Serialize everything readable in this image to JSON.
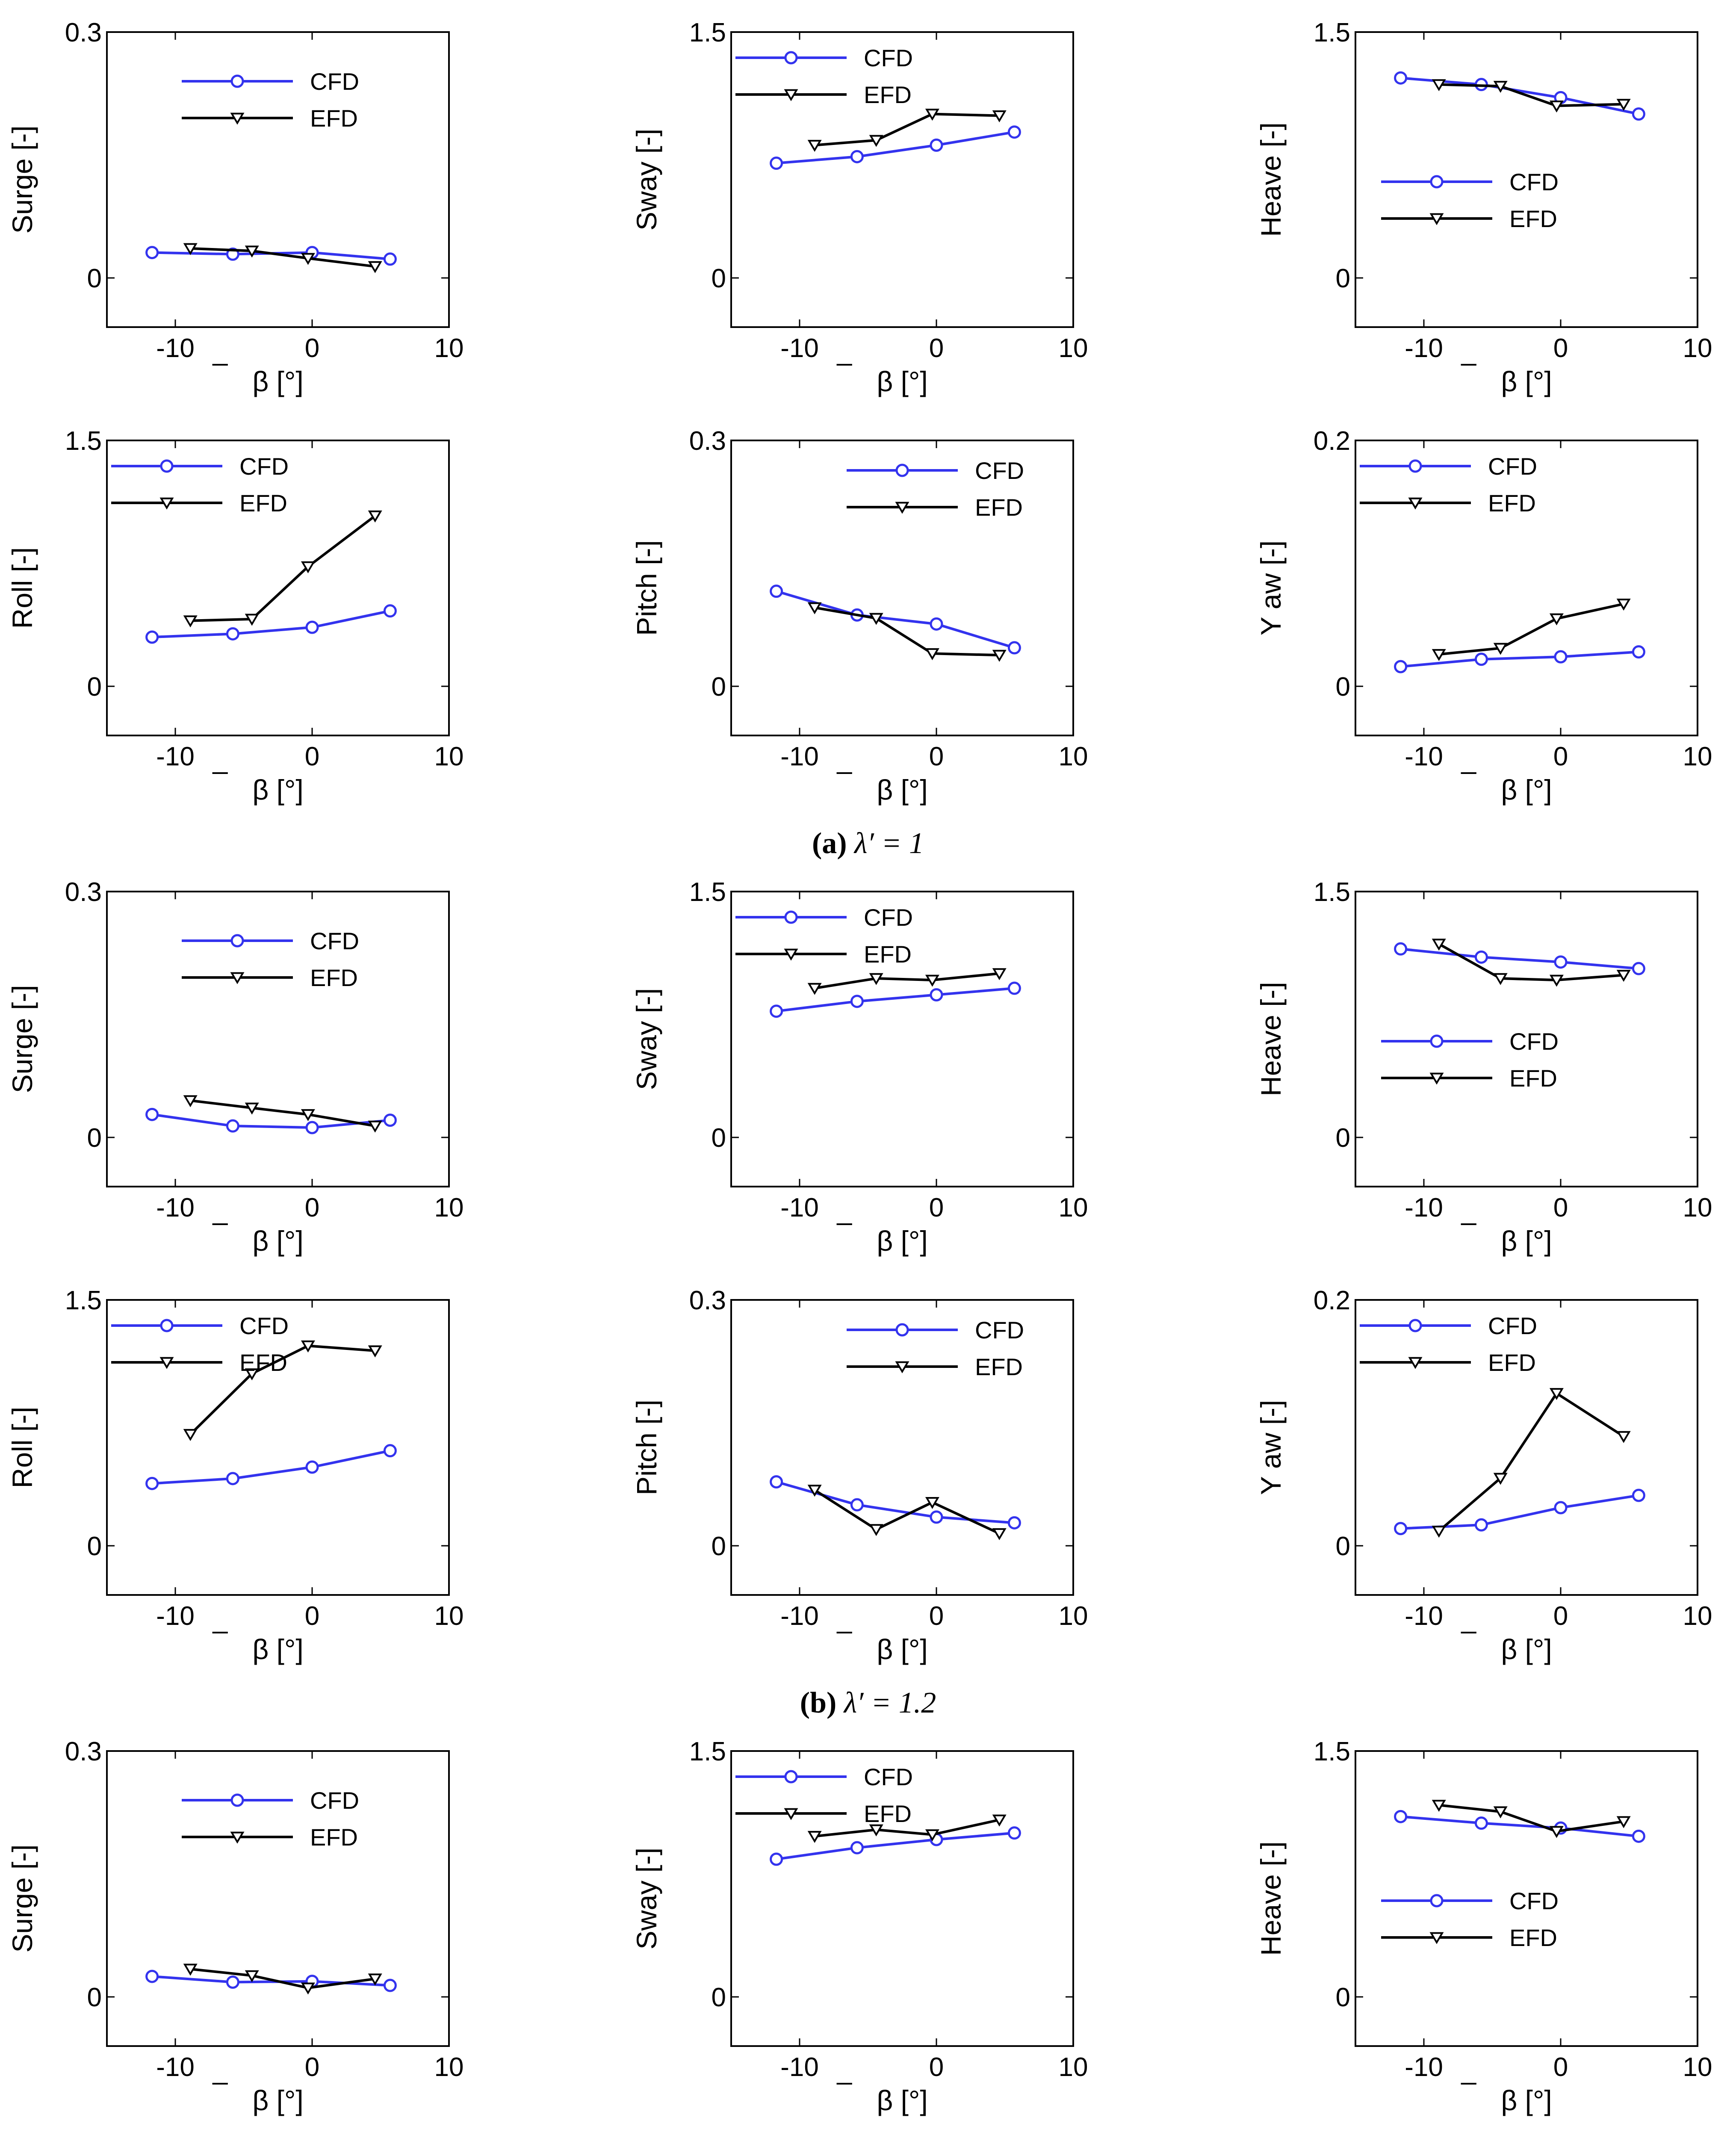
{
  "figure": {
    "captions": [
      {
        "label": "(a)",
        "text": "λ′ = 1"
      },
      {
        "label": "(b)",
        "text": "λ′ = 1.2"
      }
    ],
    "x_axis_label": "β [°]",
    "colors": {
      "cfd": "#3333ee",
      "efd": "#000000"
    }
  },
  "chart_data": [
    {
      "type": "line",
      "group": "a",
      "title": "",
      "ylabel": "Surge [-]",
      "xlabel": "β [°]",
      "xlim": [
        -15,
        10
      ],
      "ylim": [
        -0.06,
        0.3
      ],
      "xticks": [
        -10,
        0,
        10
      ],
      "yticks": [
        0,
        0.3
      ],
      "ytick_labels": [
        "0",
        "0.3"
      ],
      "legend_position": "top-center",
      "series": [
        {
          "name": "CFD",
          "marker": "circle",
          "x": [
            -11.7,
            -5.8,
            0,
            5.7
          ],
          "y": [
            0.031,
            0.029,
            0.031,
            0.023
          ]
        },
        {
          "name": "EFD",
          "marker": "triangle-down",
          "x": [
            -8.9,
            -4.4,
            -0.3,
            4.6
          ],
          "y": [
            0.036,
            0.033,
            0.024,
            0.014
          ]
        }
      ]
    },
    {
      "type": "line",
      "group": "a",
      "title": "",
      "ylabel": "Sway [-]",
      "xlabel": "β [°]",
      "xlim": [
        -15,
        10
      ],
      "ylim": [
        -0.3,
        1.5
      ],
      "xticks": [
        -10,
        0,
        10
      ],
      "yticks": [
        0,
        1.5
      ],
      "ytick_labels": [
        "0",
        "1.5"
      ],
      "legend_position": "top-left",
      "series": [
        {
          "name": "CFD",
          "marker": "circle",
          "x": [
            -11.7,
            -5.8,
            0,
            5.7
          ],
          "y": [
            0.7,
            0.74,
            0.81,
            0.89
          ]
        },
        {
          "name": "EFD",
          "marker": "triangle-down",
          "x": [
            -8.9,
            -4.4,
            -0.3,
            4.6
          ],
          "y": [
            0.81,
            0.84,
            1.0,
            0.99
          ]
        }
      ]
    },
    {
      "type": "line",
      "group": "a",
      "title": "",
      "ylabel": "Heave [-]",
      "xlabel": "β [°]",
      "xlim": [
        -15,
        10
      ],
      "ylim": [
        -0.3,
        1.5
      ],
      "xticks": [
        -10,
        0,
        10
      ],
      "yticks": [
        0,
        1.5
      ],
      "ytick_labels": [
        "0",
        "1.5"
      ],
      "legend_position": "center-left",
      "series": [
        {
          "name": "CFD",
          "marker": "circle",
          "x": [
            -11.7,
            -5.8,
            0,
            5.7
          ],
          "y": [
            1.22,
            1.18,
            1.1,
            1.0
          ]
        },
        {
          "name": "EFD",
          "marker": "triangle-down",
          "x": [
            -8.9,
            -4.4,
            -0.3,
            4.6
          ],
          "y": [
            1.18,
            1.17,
            1.05,
            1.06
          ]
        }
      ]
    },
    {
      "type": "line",
      "group": "a",
      "title": "",
      "ylabel": "Roll [-]",
      "xlabel": "β [°]",
      "xlim": [
        -15,
        10
      ],
      "ylim": [
        -0.3,
        1.5
      ],
      "xticks": [
        -10,
        0,
        10
      ],
      "yticks": [
        0,
        1.5
      ],
      "ytick_labels": [
        "0",
        "1.5"
      ],
      "legend_position": "top-left",
      "series": [
        {
          "name": "CFD",
          "marker": "circle",
          "x": [
            -11.7,
            -5.8,
            0,
            5.7
          ],
          "y": [
            0.3,
            0.32,
            0.36,
            0.46
          ]
        },
        {
          "name": "EFD",
          "marker": "triangle-down",
          "x": [
            -8.9,
            -4.4,
            -0.3,
            4.6
          ],
          "y": [
            0.4,
            0.41,
            0.73,
            1.04
          ]
        }
      ]
    },
    {
      "type": "line",
      "group": "a",
      "title": "",
      "ylabel": "Pitch [-]",
      "xlabel": "β [°]",
      "xlim": [
        -15,
        10
      ],
      "ylim": [
        -0.06,
        0.3
      ],
      "xticks": [
        -10,
        0,
        10
      ],
      "yticks": [
        0,
        0.3
      ],
      "ytick_labels": [
        "0",
        "0.3"
      ],
      "legend_position": "top-right",
      "series": [
        {
          "name": "CFD",
          "marker": "circle",
          "x": [
            -11.7,
            -5.8,
            0,
            5.7
          ],
          "y": [
            0.116,
            0.087,
            0.076,
            0.047
          ]
        },
        {
          "name": "EFD",
          "marker": "triangle-down",
          "x": [
            -8.9,
            -4.4,
            -0.3,
            4.6
          ],
          "y": [
            0.096,
            0.083,
            0.04,
            0.038
          ]
        }
      ]
    },
    {
      "type": "line",
      "group": "a",
      "title": "",
      "ylabel": "Y aw [-]",
      "xlabel": "β [°]",
      "xlim": [
        -15,
        10
      ],
      "ylim": [
        -0.04,
        0.2
      ],
      "xticks": [
        -10,
        0,
        10
      ],
      "yticks": [
        0,
        0.2
      ],
      "ytick_labels": [
        "0",
        "0.2"
      ],
      "legend_position": "top-left",
      "series": [
        {
          "name": "CFD",
          "marker": "circle",
          "x": [
            -11.7,
            -5.8,
            0,
            5.7
          ],
          "y": [
            0.016,
            0.022,
            0.024,
            0.028
          ]
        },
        {
          "name": "EFD",
          "marker": "triangle-down",
          "x": [
            -8.9,
            -4.4,
            -0.3,
            4.6
          ],
          "y": [
            0.026,
            0.031,
            0.055,
            0.067
          ]
        }
      ]
    },
    {
      "type": "line",
      "group": "b",
      "title": "",
      "ylabel": "Surge [-]",
      "xlabel": "β [°]",
      "xlim": [
        -15,
        10
      ],
      "ylim": [
        -0.06,
        0.3
      ],
      "xticks": [
        -10,
        0,
        10
      ],
      "yticks": [
        0,
        0.3
      ],
      "ytick_labels": [
        "0",
        "0.3"
      ],
      "legend_position": "top-center",
      "series": [
        {
          "name": "CFD",
          "marker": "circle",
          "x": [
            -11.7,
            -5.8,
            0,
            5.7
          ],
          "y": [
            0.028,
            0.014,
            0.012,
            0.021
          ]
        },
        {
          "name": "EFD",
          "marker": "triangle-down",
          "x": [
            -8.9,
            -4.4,
            -0.3,
            4.6
          ],
          "y": [
            0.045,
            0.036,
            0.028,
            0.014
          ]
        }
      ]
    },
    {
      "type": "line",
      "group": "b",
      "title": "",
      "ylabel": "Sway [-]",
      "xlabel": "β [°]",
      "xlim": [
        -15,
        10
      ],
      "ylim": [
        -0.3,
        1.5
      ],
      "xticks": [
        -10,
        0,
        10
      ],
      "yticks": [
        0,
        1.5
      ],
      "ytick_labels": [
        "0",
        "1.5"
      ],
      "legend_position": "top-left",
      "series": [
        {
          "name": "CFD",
          "marker": "circle",
          "x": [
            -11.7,
            -5.8,
            0,
            5.7
          ],
          "y": [
            0.77,
            0.83,
            0.87,
            0.91
          ]
        },
        {
          "name": "EFD",
          "marker": "triangle-down",
          "x": [
            -8.9,
            -4.4,
            -0.3,
            4.6
          ],
          "y": [
            0.91,
            0.97,
            0.96,
            1.0
          ]
        }
      ]
    },
    {
      "type": "line",
      "group": "b",
      "title": "",
      "ylabel": "Heave [-]",
      "xlabel": "β [°]",
      "xlim": [
        -15,
        10
      ],
      "ylim": [
        -0.3,
        1.5
      ],
      "xticks": [
        -10,
        0,
        10
      ],
      "yticks": [
        0,
        1.5
      ],
      "ytick_labels": [
        "0",
        "1.5"
      ],
      "legend_position": "center-left",
      "series": [
        {
          "name": "CFD",
          "marker": "circle",
          "x": [
            -11.7,
            -5.8,
            0,
            5.7
          ],
          "y": [
            1.15,
            1.1,
            1.07,
            1.03
          ]
        },
        {
          "name": "EFD",
          "marker": "triangle-down",
          "x": [
            -8.9,
            -4.4,
            -0.3,
            4.6
          ],
          "y": [
            1.18,
            0.97,
            0.96,
            0.99
          ]
        }
      ]
    },
    {
      "type": "line",
      "group": "b",
      "title": "",
      "ylabel": "Roll [-]",
      "xlabel": "β [°]",
      "xlim": [
        -15,
        10
      ],
      "ylim": [
        -0.3,
        1.5
      ],
      "xticks": [
        -10,
        0,
        10
      ],
      "yticks": [
        0,
        1.5
      ],
      "ytick_labels": [
        "0",
        "1.5"
      ],
      "legend_position": "top-left",
      "series": [
        {
          "name": "CFD",
          "marker": "circle",
          "x": [
            -11.7,
            -5.8,
            0,
            5.7
          ],
          "y": [
            0.38,
            0.41,
            0.48,
            0.58
          ]
        },
        {
          "name": "EFD",
          "marker": "triangle-down",
          "x": [
            -8.9,
            -4.4,
            -0.3,
            4.6
          ],
          "y": [
            0.68,
            1.05,
            1.22,
            1.19
          ]
        }
      ]
    },
    {
      "type": "line",
      "group": "b",
      "title": "",
      "ylabel": "Pitch [-]",
      "xlabel": "β [°]",
      "xlim": [
        -15,
        10
      ],
      "ylim": [
        -0.06,
        0.3
      ],
      "xticks": [
        -10,
        0,
        10
      ],
      "yticks": [
        0,
        0.3
      ],
      "ytick_labels": [
        "0",
        "0.3"
      ],
      "legend_position": "top-right",
      "series": [
        {
          "name": "CFD",
          "marker": "circle",
          "x": [
            -11.7,
            -5.8,
            0,
            5.7
          ],
          "y": [
            0.078,
            0.05,
            0.035,
            0.028
          ]
        },
        {
          "name": "EFD",
          "marker": "triangle-down",
          "x": [
            -8.9,
            -4.4,
            -0.3,
            4.6
          ],
          "y": [
            0.068,
            0.02,
            0.053,
            0.015
          ]
        }
      ]
    },
    {
      "type": "line",
      "group": "b",
      "title": "",
      "ylabel": "Y aw [-]",
      "xlabel": "β [°]",
      "xlim": [
        -15,
        10
      ],
      "ylim": [
        -0.04,
        0.2
      ],
      "xticks": [
        -10,
        0,
        10
      ],
      "yticks": [
        0,
        0.2
      ],
      "ytick_labels": [
        "0",
        "0.2"
      ],
      "legend_position": "top-left",
      "series": [
        {
          "name": "CFD",
          "marker": "circle",
          "x": [
            -11.7,
            -5.8,
            0,
            5.7
          ],
          "y": [
            0.014,
            0.017,
            0.031,
            0.041
          ]
        },
        {
          "name": "EFD",
          "marker": "triangle-down",
          "x": [
            -8.9,
            -4.4,
            -0.3,
            4.6
          ],
          "y": [
            0.012,
            0.055,
            0.124,
            0.089
          ]
        }
      ]
    },
    {
      "type": "line",
      "group": "c",
      "title": "",
      "ylabel": "Surge [-]",
      "xlabel": "β [°]",
      "xlim": [
        -15,
        10
      ],
      "ylim": [
        -0.06,
        0.3
      ],
      "xticks": [
        -10,
        0,
        10
      ],
      "yticks": [
        0,
        0.3
      ],
      "ytick_labels": [
        "0",
        "0.3"
      ],
      "legend_position": "top-center",
      "series": [
        {
          "name": "CFD",
          "marker": "circle",
          "x": [
            -11.7,
            -5.8,
            0,
            5.7
          ],
          "y": [
            0.025,
            0.018,
            0.019,
            0.014
          ]
        },
        {
          "name": "EFD",
          "marker": "triangle-down",
          "x": [
            -8.9,
            -4.4,
            -0.3,
            4.6
          ],
          "y": [
            0.034,
            0.026,
            0.011,
            0.022
          ]
        }
      ]
    },
    {
      "type": "line",
      "group": "c",
      "title": "",
      "ylabel": "Sway [-]",
      "xlabel": "β [°]",
      "xlim": [
        -15,
        10
      ],
      "ylim": [
        -0.3,
        1.5
      ],
      "xticks": [
        -10,
        0,
        10
      ],
      "yticks": [
        0,
        1.5
      ],
      "ytick_labels": [
        "0",
        "1.5"
      ],
      "legend_position": "top-left",
      "series": [
        {
          "name": "CFD",
          "marker": "circle",
          "x": [
            -11.7,
            -5.8,
            0,
            5.7
          ],
          "y": [
            0.84,
            0.91,
            0.96,
            1.0
          ]
        },
        {
          "name": "EFD",
          "marker": "triangle-down",
          "x": [
            -8.9,
            -4.4,
            -0.3,
            4.6
          ],
          "y": [
            0.98,
            1.02,
            0.99,
            1.08
          ]
        }
      ]
    },
    {
      "type": "line",
      "group": "c",
      "title": "",
      "ylabel": "Heave [-]",
      "xlabel": "β [°]",
      "xlim": [
        -15,
        10
      ],
      "ylim": [
        -0.3,
        1.5
      ],
      "xticks": [
        -10,
        0,
        10
      ],
      "yticks": [
        0,
        1.5
      ],
      "ytick_labels": [
        "0",
        "1.5"
      ],
      "legend_position": "center-left",
      "series": [
        {
          "name": "CFD",
          "marker": "circle",
          "x": [
            -11.7,
            -5.8,
            0,
            5.7
          ],
          "y": [
            1.1,
            1.06,
            1.03,
            0.98
          ]
        },
        {
          "name": "EFD",
          "marker": "triangle-down",
          "x": [
            -8.9,
            -4.4,
            -0.3,
            4.6
          ],
          "y": [
            1.17,
            1.13,
            1.01,
            1.07
          ]
        }
      ]
    }
  ]
}
